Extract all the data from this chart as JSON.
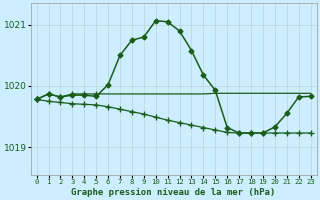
{
  "title": "Graphe pression niveau de la mer (hPa)",
  "bg_color": "#cceeff",
  "line_color": "#1a5c1a",
  "ylim": [
    1018.55,
    1021.35
  ],
  "yticks": [
    1019,
    1020,
    1021
  ],
  "x_labels": [
    "0",
    "1",
    "2",
    "3",
    "4",
    "5",
    "6",
    "7",
    "8",
    "9",
    "10",
    "11",
    "12",
    "13",
    "14",
    "15",
    "16",
    "17",
    "18",
    "19",
    "20",
    "21",
    "22",
    "23"
  ],
  "y_main": [
    1019.78,
    1019.87,
    1019.82,
    1019.85,
    1019.85,
    1019.83,
    1020.02,
    1020.5,
    1020.75,
    1020.8,
    1021.07,
    1021.05,
    1020.9,
    1020.58,
    1020.18,
    1019.93,
    1019.32,
    1019.23,
    1019.23,
    1019.23,
    1019.33,
    1019.55,
    1019.82,
    1019.83
  ],
  "y_flat": [
    1019.78,
    1019.87,
    1019.82,
    1019.87,
    1019.87,
    1019.87,
    1019.87,
    1019.87,
    1019.87,
    1019.87,
    1019.87,
    1019.87,
    1019.87,
    1019.87,
    1019.87,
    1019.88,
    1019.88,
    1019.88,
    1019.88,
    1019.88,
    1019.88,
    1019.88,
    1019.88,
    1019.88
  ],
  "y_decline": [
    1019.78,
    1019.75,
    1019.73,
    1019.71,
    1019.7,
    1019.69,
    1019.66,
    1019.62,
    1019.58,
    1019.54,
    1019.49,
    1019.44,
    1019.4,
    1019.36,
    1019.32,
    1019.28,
    1019.24,
    1019.23,
    1019.23,
    1019.23,
    1019.23,
    1019.23,
    1019.23,
    1019.23
  ],
  "main_markers": [
    0,
    1,
    2,
    3,
    4,
    5,
    6,
    7,
    8,
    9,
    10,
    11,
    12,
    13,
    14,
    15,
    16,
    17,
    18,
    19,
    20,
    21,
    22,
    23
  ],
  "flat_markers": [
    0,
    1,
    2,
    3,
    4,
    5
  ],
  "decline_markers": [
    0,
    1,
    2,
    3,
    4,
    5,
    6,
    7,
    8,
    9,
    10,
    11,
    12,
    13,
    14,
    15,
    16,
    17,
    18,
    19,
    20,
    21,
    22,
    23
  ]
}
